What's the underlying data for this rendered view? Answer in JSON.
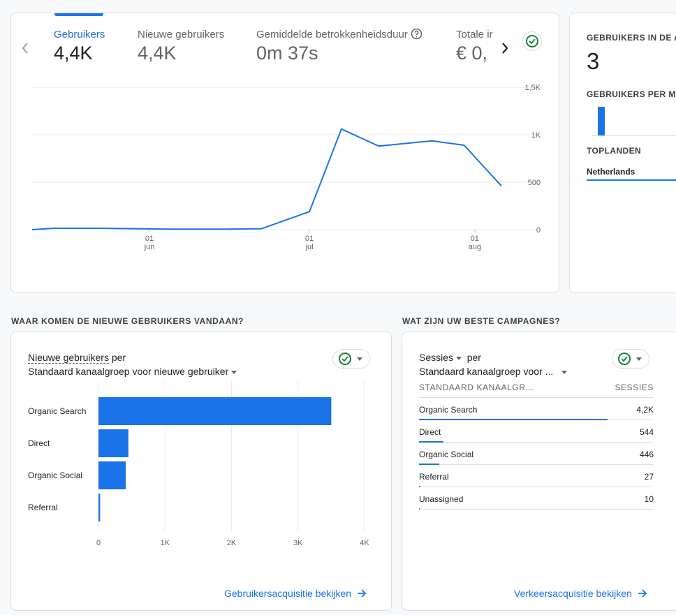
{
  "overview": {
    "metrics": [
      {
        "label": "Gebruikers",
        "value": "4,4K",
        "active": true
      },
      {
        "label": "Nieuwe gebruikers",
        "value": "4,4K",
        "active": false
      },
      {
        "label": "Gemiddelde betrokkenheidsduur",
        "value": "0m 37s",
        "active": false
      },
      {
        "label": "Totale ir",
        "value": "€ 0,",
        "active": false
      }
    ],
    "chart_y_ticks": [
      "1,5K",
      "1K",
      "500",
      "0"
    ],
    "chart_x_ticks": [
      {
        "day": "01",
        "month": "jun"
      },
      {
        "day": "01",
        "month": "jul"
      },
      {
        "day": "01",
        "month": "aug"
      }
    ]
  },
  "realtime": {
    "users_label": "GEBRUIKERS IN DE AF",
    "users_value": "3",
    "per_minute_label": "GEBRUIKERS PER MIN",
    "top_countries_label": "TOPLANDEN",
    "top_country": "Netherlands"
  },
  "new_users_section": {
    "title": "WAAR KOMEN DE NIEUWE GEBRUIKERS VANDAAN?",
    "card_title_line1": "Nieuwe gebruikers",
    "card_title_per": " per",
    "card_title_line2": "Standaard kanaalgroep voor nieuwe gebruiker",
    "link": "Gebruikersacquisitie bekijken"
  },
  "campaigns_section": {
    "title": "WAT ZIJN UW BESTE CAMPAGNES?",
    "card_title_line1": "Sessies",
    "card_title_per": "per",
    "card_title_line2": "Standaard kanaalgroep voor ...",
    "col_header_left": "STANDAARD KANAALGR...",
    "col_header_right": "SESSIES",
    "rows": [
      {
        "name": "Organic Search",
        "value": "4,2K",
        "fraction": 1.0
      },
      {
        "name": "Direct",
        "value": "544",
        "fraction": 0.13
      },
      {
        "name": "Organic Social",
        "value": "446",
        "fraction": 0.106
      },
      {
        "name": "Referral",
        "value": "27",
        "fraction": 0.006
      },
      {
        "name": "Unassigned",
        "value": "10",
        "fraction": 0.0024
      }
    ],
    "link": "Verkeersacquisitie bekijken"
  },
  "chart_data": [
    {
      "type": "line",
      "x": [
        "2024-05-10",
        "2024-05-14",
        "2024-05-23",
        "2024-06-05",
        "2024-06-15",
        "2024-06-22",
        "2024-07-01",
        "2024-07-07",
        "2024-07-14",
        "2024-07-24",
        "2024-07-30",
        "2024-08-06"
      ],
      "series": [
        {
          "values": [
            0,
            15,
            15,
            5,
            5,
            10,
            190,
            1060,
            880,
            935,
            890,
            460
          ]
        }
      ],
      "x_ticks": [
        "01 jun",
        "01 jul",
        "01 aug"
      ],
      "y_ticks": [
        "0",
        "500",
        "1K",
        "1,5K"
      ],
      "ylim": [
        0,
        1500
      ],
      "grid": true
    },
    {
      "type": "bar",
      "orientation": "horizontal",
      "categories": [
        "Organic Search",
        "Direct",
        "Organic Social",
        "Referral"
      ],
      "values": [
        3500,
        450,
        410,
        25
      ],
      "x_ticks": [
        "0",
        "1K",
        "2K",
        "3K",
        "4K"
      ],
      "xlim": [
        0,
        4000
      ],
      "grid": true
    }
  ],
  "colors": {
    "accent": "#1a73e8",
    "check": "#188038",
    "border": "#dadce0"
  }
}
